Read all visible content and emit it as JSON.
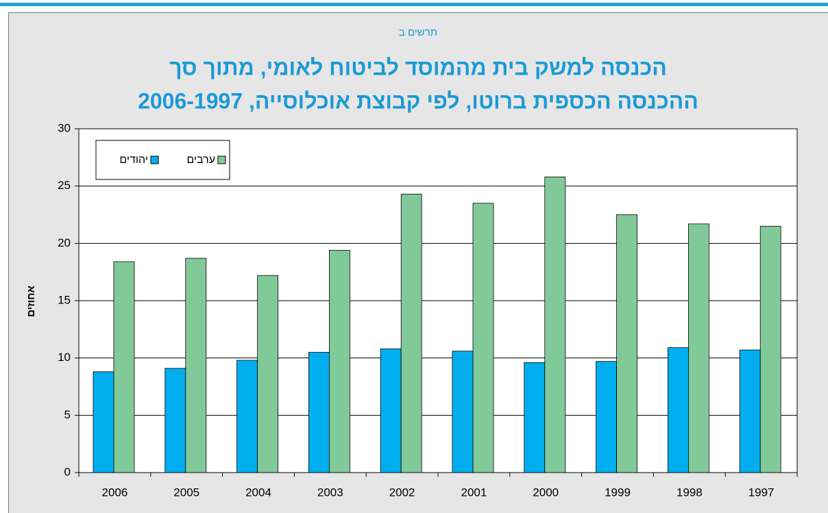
{
  "chart_data": {
    "type": "bar",
    "subtitle": "תרשים ב",
    "title": [
      "הכנסה למשק בית מהמוסד לביטוח לאומי, מתוך סך",
      "ההכנסה הכספית ברוטו, לפי קבוצת אוכלוסייה, 2006-1997"
    ],
    "y_label": "אחוזים",
    "categories": [
      "2006",
      "2005",
      "2004",
      "2003",
      "2002",
      "2001",
      "2000",
      "1999",
      "1998",
      "1997"
    ],
    "series": [
      {
        "name": "יהודים",
        "color": "#00aeef",
        "values": [
          8.8,
          9.1,
          9.8,
          10.5,
          10.8,
          10.6,
          9.6,
          9.7,
          10.9,
          10.7
        ]
      },
      {
        "name": "ערבים",
        "color": "#82c99a",
        "values": [
          18.4,
          18.7,
          17.2,
          19.4,
          24.3,
          23.5,
          25.8,
          22.5,
          21.7,
          21.5
        ]
      }
    ],
    "ylim": [
      0,
      30
    ],
    "yticks": [
      0,
      5,
      10,
      15,
      20,
      25,
      30
    ],
    "grid": true,
    "legend": "upper left"
  }
}
